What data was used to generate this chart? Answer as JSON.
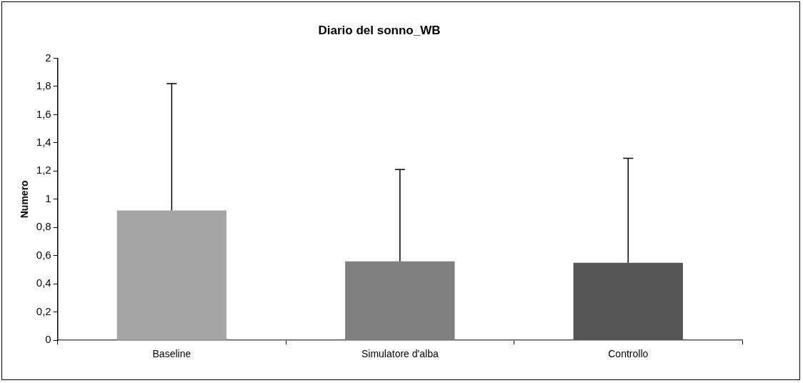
{
  "chart_data": {
    "type": "bar",
    "title": "Diario del sonno_WB",
    "ylabel": "Numero",
    "categories": [
      "Baseline",
      "Simulatore d'alba",
      "Controllo"
    ],
    "values": [
      0.92,
      0.56,
      0.55
    ],
    "colors": [
      "#a6a6a6",
      "#808080",
      "#555555"
    ],
    "errors": [
      [
        0.92,
        1.82
      ],
      [
        0.56,
        1.21
      ],
      [
        0.55,
        1.29
      ]
    ],
    "ylim": [
      0,
      2
    ],
    "yticks": [
      0,
      {
        "value": 0.2,
        "label": "0,2"
      },
      {
        "value": 0.4,
        "label": "0,4"
      },
      {
        "value": 0.6,
        "label": "0,6"
      },
      {
        "value": 0.8,
        "label": "0,8"
      },
      1,
      {
        "value": 1.2,
        "label": "1,2"
      },
      {
        "value": 1.4,
        "label": "1,4"
      },
      {
        "value": 1.6,
        "label": "1,6"
      },
      {
        "value": 1.8,
        "label": "1,8"
      },
      2
    ],
    "grid": false,
    "legend": false
  }
}
